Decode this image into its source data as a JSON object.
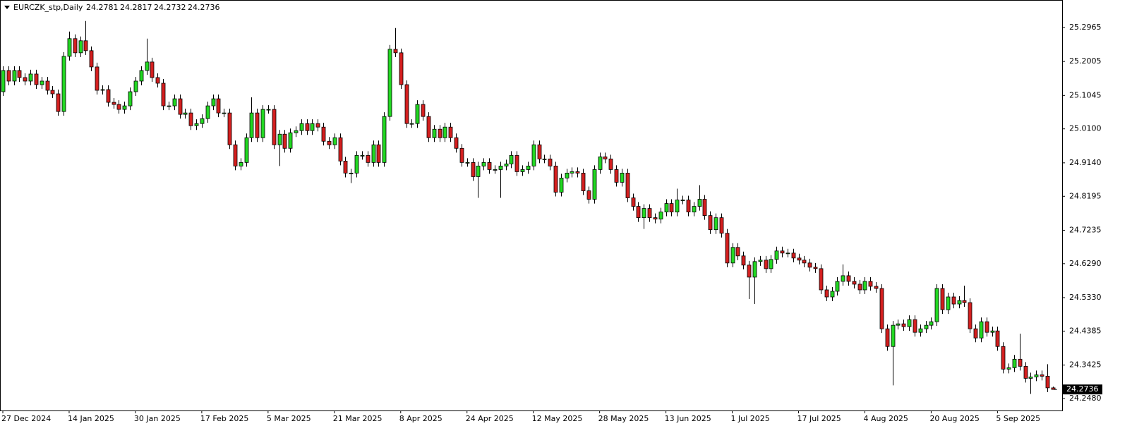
{
  "chart_data": {
    "type": "candlestick",
    "title": "EURCZK_stp,Daily",
    "up_color": "#22d822",
    "down_color": "#d41f1f",
    "grid": false,
    "categories": [
      "27 Dec 2024",
      null,
      null,
      null,
      null,
      null,
      null,
      null,
      null,
      null,
      null,
      null,
      "14 Jan 2025",
      null,
      null,
      null,
      null,
      null,
      null,
      null,
      null,
      null,
      null,
      null,
      "30 Jan 2025",
      null,
      null,
      null,
      null,
      null,
      null,
      null,
      null,
      null,
      null,
      null,
      "17 Feb 2025",
      null,
      null,
      null,
      null,
      null,
      null,
      null,
      null,
      null,
      null,
      null,
      "5 Mar 2025",
      null,
      null,
      null,
      null,
      null,
      null,
      null,
      null,
      null,
      null,
      null,
      "21 Mar 2025",
      null,
      null,
      null,
      null,
      null,
      null,
      null,
      null,
      null,
      null,
      null,
      "8 Apr 2025",
      null,
      null,
      null,
      null,
      null,
      null,
      null,
      null,
      null,
      null,
      null,
      "24 Apr 2025",
      null,
      null,
      null,
      null,
      null,
      null,
      null,
      null,
      null,
      null,
      null,
      "12 May 2025",
      null,
      null,
      null,
      null,
      null,
      null,
      null,
      null,
      null,
      null,
      null,
      "28 May 2025",
      null,
      null,
      null,
      null,
      null,
      null,
      null,
      null,
      null,
      null,
      null,
      "13 Jun 2025",
      null,
      null,
      null,
      null,
      null,
      null,
      null,
      null,
      null,
      null,
      null,
      "1 Jul 2025",
      null,
      null,
      null,
      null,
      null,
      null,
      null,
      null,
      null,
      null,
      null,
      "17 Jul 2025",
      null,
      null,
      null,
      null,
      null,
      null,
      null,
      null,
      null,
      null,
      null,
      "4 Aug 2025",
      null,
      null,
      null,
      null,
      null,
      null,
      null,
      null,
      null,
      null,
      null,
      "20 Aug 2025",
      null,
      null,
      null,
      null,
      null,
      null,
      null,
      null,
      null,
      null,
      null,
      "5 Sep 2025",
      null,
      null,
      null,
      null,
      null,
      null,
      null,
      null,
      null,
      null
    ],
    "open": [
      25.115,
      25.175,
      25.145,
      25.175,
      25.155,
      25.145,
      25.165,
      25.135,
      25.145,
      25.119,
      25.109,
      25.059,
      25.215,
      25.265,
      25.225,
      25.259,
      25.231,
      25.185,
      25.119,
      25.121,
      25.085,
      25.079,
      25.065,
      25.075,
      25.115,
      25.145,
      25.175,
      25.199,
      25.155,
      25.139,
      25.075,
      25.075,
      25.095,
      25.051,
      25.055,
      25.019,
      25.025,
      25.039,
      25.075,
      25.095,
      25.055,
      25.055,
      24.965,
      24.905,
      24.915,
      24.985,
      25.055,
      24.985,
      25.065,
      25.065,
      24.965,
      24.995,
      24.955,
      24.999,
      25.005,
      25.025,
      25.005,
      25.025,
      25.015,
      24.975,
      24.965,
      24.985,
      24.919,
      24.885,
      24.885,
      24.935,
      24.935,
      24.915,
      24.965,
      24.915,
      25.045,
      25.235,
      25.225,
      25.135,
      25.025,
      25.025,
      25.079,
      25.045,
      24.985,
      25.009,
      24.985,
      25.015,
      24.985,
      24.955,
      24.915,
      24.915,
      24.875,
      24.905,
      24.915,
      24.895,
      24.895,
      24.905,
      24.911,
      24.935,
      24.889,
      24.895,
      24.905,
      24.965,
      24.925,
      24.925,
      24.905,
      24.831,
      24.871,
      24.885,
      24.889,
      24.885,
      24.835,
      24.811,
      24.895,
      24.931,
      24.925,
      24.895,
      24.859,
      24.885,
      24.815,
      24.791,
      24.759,
      24.785,
      24.759,
      24.755,
      24.775,
      24.799,
      24.775,
      24.809,
      24.809,
      24.775,
      24.791,
      24.811,
      24.765,
      24.725,
      24.759,
      24.715,
      24.631,
      24.675,
      24.651,
      24.625,
      24.591,
      24.635,
      24.639,
      24.615,
      24.641,
      24.665,
      24.659,
      24.659,
      24.645,
      24.639,
      24.631,
      24.619,
      24.615,
      24.555,
      24.535,
      24.551,
      24.579,
      24.595,
      24.579,
      24.571,
      24.555,
      24.579,
      24.565,
      24.559,
      24.445,
      24.395,
      24.455,
      24.459,
      24.451,
      24.471,
      24.435,
      24.445,
      24.455,
      24.465,
      24.559,
      24.499,
      24.535,
      24.515,
      24.525,
      24.519,
      24.445,
      24.419,
      24.465,
      24.435,
      24.439,
      24.395,
      24.331,
      24.335,
      24.359,
      24.339,
      24.305,
      24.309,
      24.315,
      24.311,
      24.2781
    ],
    "high": [
      25.187,
      25.187,
      25.187,
      25.187,
      25.167,
      25.177,
      25.177,
      25.157,
      25.157,
      25.131,
      25.121,
      25.227,
      25.285,
      25.277,
      25.271,
      25.315,
      25.243,
      25.197,
      25.133,
      25.133,
      25.097,
      25.091,
      25.087,
      25.127,
      25.157,
      25.187,
      25.265,
      25.211,
      25.167,
      25.151,
      25.087,
      25.107,
      25.107,
      25.067,
      25.067,
      25.037,
      25.051,
      25.087,
      25.107,
      25.107,
      25.067,
      25.067,
      24.977,
      24.927,
      24.997,
      25.099,
      25.067,
      25.077,
      25.077,
      25.077,
      25.007,
      25.007,
      25.011,
      25.017,
      25.037,
      25.037,
      25.037,
      25.037,
      25.027,
      24.987,
      24.997,
      24.997,
      24.931,
      24.897,
      24.947,
      24.947,
      24.947,
      24.977,
      24.977,
      25.057,
      25.247,
      25.295,
      25.237,
      25.147,
      25.037,
      25.091,
      25.091,
      25.057,
      25.021,
      25.021,
      25.027,
      25.027,
      24.997,
      24.967,
      24.927,
      24.927,
      24.917,
      24.927,
      24.927,
      24.907,
      24.917,
      24.923,
      24.947,
      24.947,
      24.907,
      24.917,
      24.977,
      24.977,
      24.937,
      24.937,
      24.917,
      24.883,
      24.897,
      24.901,
      24.901,
      24.897,
      24.847,
      24.907,
      24.943,
      24.943,
      24.937,
      24.907,
      24.897,
      24.897,
      24.827,
      24.803,
      24.797,
      24.797,
      24.771,
      24.787,
      24.811,
      24.811,
      24.841,
      24.821,
      24.821,
      24.803,
      24.851,
      24.823,
      24.777,
      24.771,
      24.771,
      24.727,
      24.687,
      24.687,
      24.663,
      24.637,
      24.647,
      24.651,
      24.651,
      24.653,
      24.677,
      24.677,
      24.671,
      24.671,
      24.657,
      24.651,
      24.643,
      24.631,
      24.627,
      24.567,
      24.563,
      24.591,
      24.627,
      24.607,
      24.591,
      24.583,
      24.591,
      24.591,
      24.577,
      24.571,
      24.457,
      24.467,
      24.471,
      24.471,
      24.483,
      24.483,
      24.457,
      24.467,
      24.477,
      24.571,
      24.571,
      24.547,
      24.547,
      24.537,
      24.567,
      24.531,
      24.457,
      24.477,
      24.477,
      24.451,
      24.451,
      24.407,
      24.347,
      24.371,
      24.431,
      24.351,
      24.321,
      24.327,
      24.327,
      24.345,
      24.2817
    ],
    "low": [
      25.103,
      25.133,
      25.133,
      25.143,
      25.133,
      25.133,
      25.123,
      25.123,
      25.107,
      25.097,
      25.047,
      25.047,
      25.203,
      25.213,
      25.213,
      25.219,
      25.173,
      25.107,
      25.107,
      25.073,
      25.067,
      25.053,
      25.053,
      25.063,
      25.103,
      25.133,
      25.163,
      25.143,
      25.127,
      25.063,
      25.063,
      25.063,
      25.039,
      25.039,
      25.007,
      25.007,
      25.013,
      25.027,
      25.063,
      25.043,
      25.043,
      24.953,
      24.893,
      24.893,
      24.903,
      24.973,
      24.973,
      24.973,
      25.053,
      24.953,
      24.905,
      24.943,
      24.943,
      24.987,
      24.993,
      24.993,
      24.993,
      25.003,
      24.963,
      24.953,
      24.953,
      24.907,
      24.873,
      24.857,
      24.873,
      24.923,
      24.903,
      24.903,
      24.903,
      24.903,
      25.033,
      25.213,
      25.123,
      25.013,
      25.013,
      25.013,
      25.033,
      24.973,
      24.973,
      24.973,
      24.973,
      24.973,
      24.943,
      24.903,
      24.903,
      24.863,
      24.815,
      24.893,
      24.883,
      24.883,
      24.815,
      24.893,
      24.899,
      24.877,
      24.877,
      24.883,
      24.893,
      24.913,
      24.913,
      24.893,
      24.819,
      24.819,
      24.859,
      24.873,
      24.873,
      24.823,
      24.799,
      24.799,
      24.883,
      24.913,
      24.883,
      24.847,
      24.847,
      24.803,
      24.779,
      24.747,
      24.727,
      24.747,
      24.743,
      24.743,
      24.763,
      24.763,
      24.763,
      24.797,
      24.763,
      24.763,
      24.779,
      24.753,
      24.713,
      24.713,
      24.703,
      24.619,
      24.619,
      24.639,
      24.613,
      24.529,
      24.515,
      24.623,
      24.603,
      24.603,
      24.629,
      24.647,
      24.647,
      24.633,
      24.627,
      24.619,
      24.607,
      24.603,
      24.543,
      24.523,
      24.523,
      24.539,
      24.567,
      24.567,
      24.559,
      24.543,
      24.543,
      24.553,
      24.547,
      24.433,
      24.383,
      24.285,
      24.443,
      24.439,
      24.439,
      24.423,
      24.423,
      24.433,
      24.443,
      24.453,
      24.487,
      24.487,
      24.503,
      24.503,
      24.507,
      24.433,
      24.407,
      24.407,
      24.423,
      24.423,
      24.383,
      24.319,
      24.319,
      24.323,
      24.327,
      24.293,
      24.261,
      24.297,
      24.299,
      24.266,
      24.2732
    ],
    "close": [
      25.175,
      25.145,
      25.175,
      25.155,
      25.145,
      25.165,
      25.135,
      25.145,
      25.119,
      25.109,
      25.059,
      25.215,
      25.265,
      25.225,
      25.259,
      25.231,
      25.185,
      25.119,
      25.121,
      25.085,
      25.079,
      25.065,
      25.075,
      25.115,
      25.145,
      25.175,
      25.199,
      25.155,
      25.139,
      25.075,
      25.075,
      25.095,
      25.051,
      25.055,
      25.019,
      25.025,
      25.039,
      25.075,
      25.095,
      25.055,
      25.055,
      24.965,
      24.905,
      24.915,
      24.985,
      25.055,
      24.985,
      25.065,
      25.065,
      24.965,
      24.995,
      24.955,
      24.999,
      25.005,
      25.025,
      25.005,
      25.025,
      25.015,
      24.975,
      24.965,
      24.985,
      24.919,
      24.885,
      24.885,
      24.935,
      24.935,
      24.915,
      24.965,
      24.915,
      25.045,
      25.235,
      25.225,
      25.135,
      25.025,
      25.025,
      25.079,
      25.045,
      24.985,
      25.009,
      24.985,
      25.015,
      24.985,
      24.955,
      24.915,
      24.915,
      24.875,
      24.905,
      24.915,
      24.895,
      24.895,
      24.905,
      24.911,
      24.935,
      24.889,
      24.895,
      24.905,
      24.965,
      24.925,
      24.925,
      24.905,
      24.831,
      24.871,
      24.885,
      24.889,
      24.885,
      24.835,
      24.811,
      24.895,
      24.931,
      24.925,
      24.895,
      24.859,
      24.885,
      24.815,
      24.791,
      24.759,
      24.785,
      24.759,
      24.755,
      24.775,
      24.799,
      24.775,
      24.809,
      24.809,
      24.775,
      24.791,
      24.811,
      24.765,
      24.725,
      24.759,
      24.715,
      24.631,
      24.675,
      24.651,
      24.625,
      24.591,
      24.635,
      24.639,
      24.615,
      24.641,
      24.665,
      24.659,
      24.659,
      24.645,
      24.639,
      24.631,
      24.619,
      24.615,
      24.555,
      24.535,
      24.551,
      24.579,
      24.595,
      24.579,
      24.571,
      24.555,
      24.579,
      24.565,
      24.559,
      24.445,
      24.395,
      24.455,
      24.459,
      24.451,
      24.471,
      24.435,
      24.445,
      24.455,
      24.465,
      24.559,
      24.499,
      24.535,
      24.515,
      24.525,
      24.519,
      24.445,
      24.419,
      24.465,
      24.435,
      24.439,
      24.395,
      24.331,
      24.335,
      24.359,
      24.339,
      24.305,
      24.309,
      24.315,
      24.311,
      24.2781,
      24.2736
    ],
    "ylim": [
      24.2141,
      25.3702
    ],
    "yticks": [
      25.2965,
      25.2005,
      25.1045,
      {
        "value": 25.01,
        "label": "25.0100"
      },
      {
        "value": 24.914,
        "label": "24.9140"
      },
      24.8195,
      24.7235,
      {
        "value": 24.629,
        "label": "24.6290"
      },
      {
        "value": 24.533,
        "label": "24.5330"
      },
      24.4385,
      24.3425,
      {
        "value": 24.248,
        "label": "24.2480"
      }
    ]
  }
}
